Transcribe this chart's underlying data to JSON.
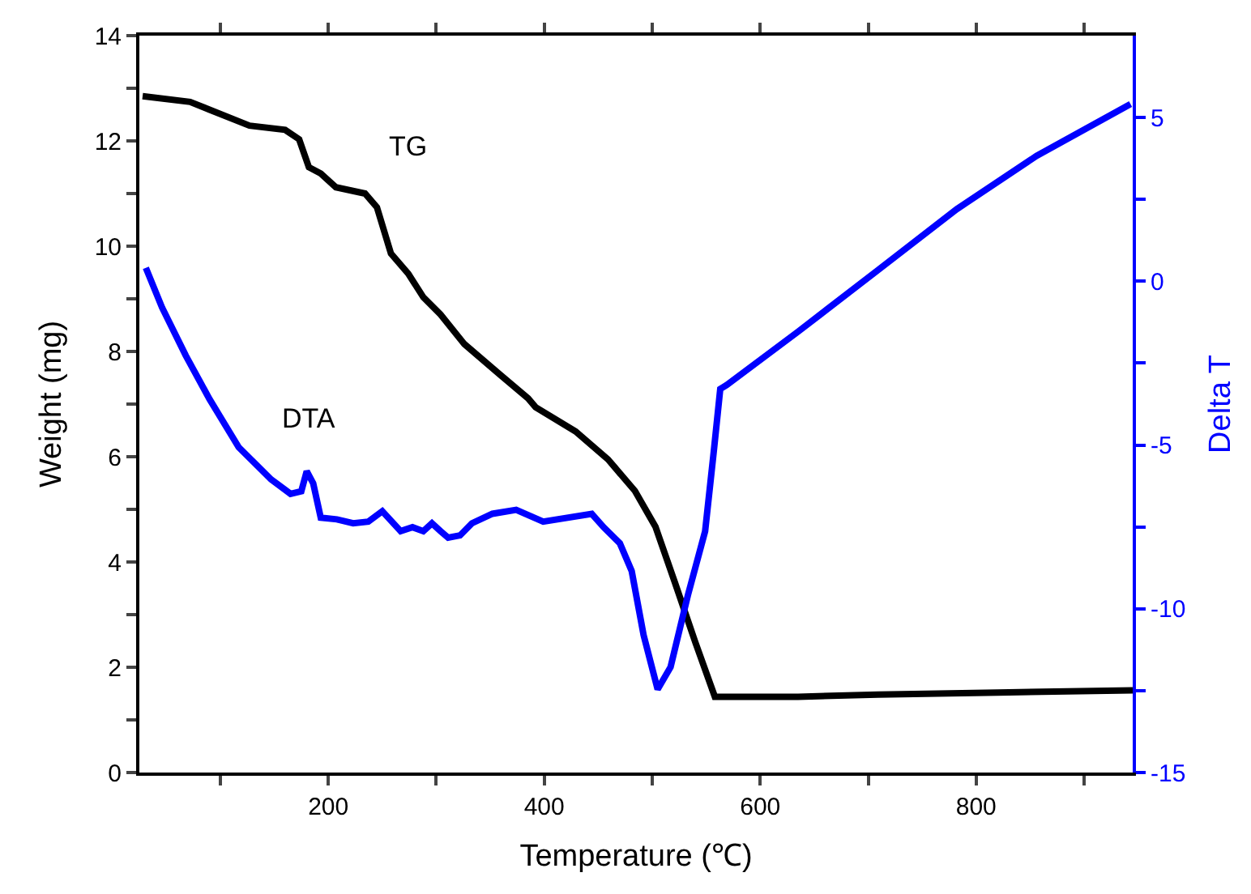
{
  "chart_data": {
    "type": "line",
    "xlabel": "Temperature (℃)",
    "ylabel": "Weight (mg)",
    "y2label": "Delta T",
    "xlim": [
      25,
      945
    ],
    "ylim": [
      0,
      14
    ],
    "y2lim": [
      -15,
      7.5
    ],
    "xticks": [
      {
        "value": 100,
        "label": null
      },
      200,
      {
        "value": 300,
        "label": null
      },
      400,
      {
        "value": 500,
        "label": null
      },
      600,
      {
        "value": 700,
        "label": null
      },
      800,
      {
        "value": 900,
        "label": null
      }
    ],
    "yticks": [
      0,
      {
        "value": 1,
        "label": null
      },
      2,
      {
        "value": 3,
        "label": null
      },
      4,
      {
        "value": 5,
        "label": null
      },
      6,
      {
        "value": 7,
        "label": null
      },
      8,
      {
        "value": 9,
        "label": null
      },
      10,
      {
        "value": 11,
        "label": null
      },
      12,
      {
        "value": 13,
        "label": null
      },
      14
    ],
    "y2ticks": [
      -15,
      {
        "value": -12.5,
        "label": null
      },
      -10,
      {
        "value": -7.5,
        "label": null
      },
      -5,
      {
        "value": -2.5,
        "label": null
      },
      0,
      {
        "value": 2.5,
        "label": null
      },
      5
    ],
    "legend": false,
    "marker": "none",
    "line_style": "solid",
    "series": [
      {
        "name": "TG",
        "color": "#000000",
        "x": [
          28,
          72,
          127,
          160,
          173,
          182,
          193,
          207,
          234,
          245,
          258,
          274,
          288,
          304,
          326,
          359,
          385,
          392,
          429,
          459,
          484,
          503,
          521,
          540,
          558,
          635,
          709,
          820,
          945
        ],
        "values": [
          12.85,
          12.74,
          12.29,
          12.21,
          12.03,
          11.5,
          11.38,
          11.12,
          11.0,
          10.74,
          9.86,
          9.48,
          9.03,
          8.7,
          8.14,
          7.56,
          7.11,
          6.94,
          6.48,
          5.95,
          5.35,
          4.67,
          3.61,
          2.47,
          1.44,
          1.44,
          1.48,
          1.52,
          1.56
        ]
      },
      {
        "name": "DTA",
        "color": "#0000ff",
        "axis": "y2",
        "x": [
          31,
          46,
          68,
          90,
          117,
          147,
          165,
          175,
          180,
          186,
          193,
          208,
          223,
          237,
          250,
          267,
          278,
          288,
          296,
          304,
          311,
          322,
          333,
          352,
          374,
          399,
          444,
          455,
          470,
          481,
          492,
          505,
          517,
          533,
          549,
          557,
          563,
          569,
          635,
          709,
          782,
          856,
          943
        ],
        "values": [
          0.41,
          -0.8,
          -2.27,
          -3.6,
          -5.07,
          -6.05,
          -6.49,
          -6.41,
          -5.8,
          -6.17,
          -7.22,
          -7.27,
          -7.39,
          -7.34,
          -7.02,
          -7.63,
          -7.51,
          -7.63,
          -7.39,
          -7.63,
          -7.83,
          -7.76,
          -7.39,
          -7.1,
          -6.98,
          -7.34,
          -7.1,
          -7.51,
          -8.0,
          -8.85,
          -10.8,
          -12.46,
          -11.78,
          -9.59,
          -7.63,
          -5.2,
          -3.29,
          -3.17,
          -1.54,
          0.34,
          2.2,
          3.83,
          5.41
        ]
      }
    ]
  }
}
